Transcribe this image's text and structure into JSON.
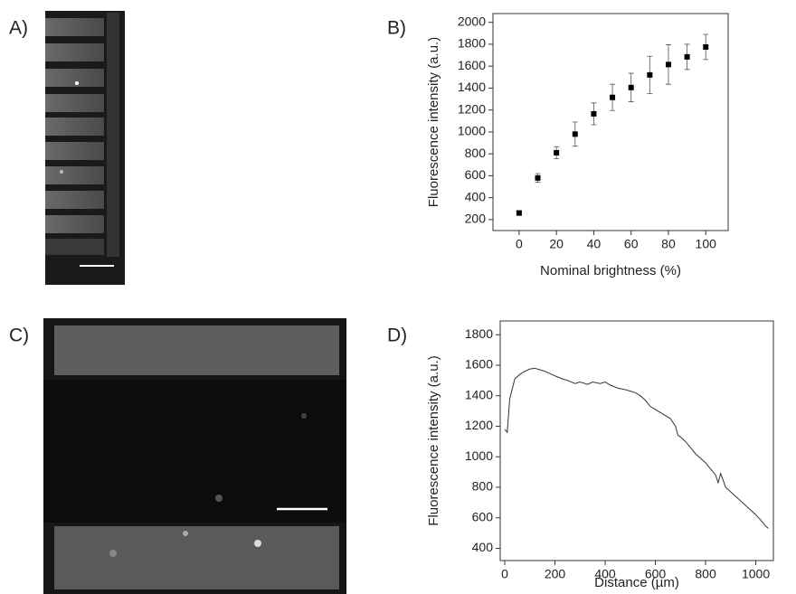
{
  "panel_labels": [
    "A)",
    "B)",
    "C)",
    "D)"
  ],
  "chart_data": [
    {
      "type": "scatter",
      "xlabel": "Nominal brightness (%)",
      "ylabel": "Fluorescence intensity (a.u.)",
      "x": [
        0,
        10,
        20,
        30,
        40,
        50,
        60,
        70,
        80,
        90,
        100
      ],
      "values": [
        260,
        580,
        810,
        980,
        1165,
        1315,
        1405,
        1520,
        1615,
        1685,
        1775
      ],
      "errors": [
        20,
        40,
        55,
        110,
        100,
        120,
        130,
        170,
        180,
        115,
        115
      ],
      "color": "#000000",
      "xlim": [
        -14,
        112
      ],
      "xticks": [
        0,
        20,
        40,
        60,
        80,
        100
      ],
      "ylim": [
        100,
        2080
      ],
      "yticks": [
        200,
        400,
        600,
        800,
        1000,
        1200,
        1400,
        1600,
        1800,
        2000
      ]
    },
    {
      "type": "line",
      "xlabel": "Distance (µm)",
      "ylabel": "Fluorescence intensity (a.u.)",
      "x": [
        0,
        10,
        20,
        40,
        60,
        80,
        100,
        120,
        140,
        160,
        180,
        200,
        230,
        250,
        280,
        300,
        330,
        350,
        380,
        400,
        420,
        450,
        480,
        500,
        520,
        540,
        560,
        580,
        600,
        620,
        640,
        660,
        680,
        690,
        700,
        720,
        740,
        760,
        780,
        800,
        820,
        840,
        850,
        860,
        880,
        900,
        920,
        940,
        960,
        980,
        1000,
        1020,
        1040,
        1050
      ],
      "values": [
        1180,
        1160,
        1380,
        1510,
        1540,
        1560,
        1575,
        1580,
        1570,
        1560,
        1545,
        1530,
        1510,
        1500,
        1480,
        1490,
        1475,
        1490,
        1480,
        1490,
        1470,
        1450,
        1440,
        1430,
        1420,
        1400,
        1370,
        1330,
        1310,
        1290,
        1270,
        1250,
        1200,
        1140,
        1130,
        1100,
        1060,
        1020,
        990,
        960,
        920,
        880,
        830,
        890,
        800,
        770,
        740,
        710,
        680,
        650,
        620,
        585,
        545,
        530
      ],
      "color": "#333333",
      "xlim": [
        -18,
        1070
      ],
      "xticks": [
        0,
        200,
        400,
        600,
        800,
        1000
      ],
      "ylim": [
        320,
        1890
      ],
      "yticks": [
        400,
        600,
        800,
        1000,
        1200,
        1400,
        1600,
        1800
      ]
    }
  ]
}
